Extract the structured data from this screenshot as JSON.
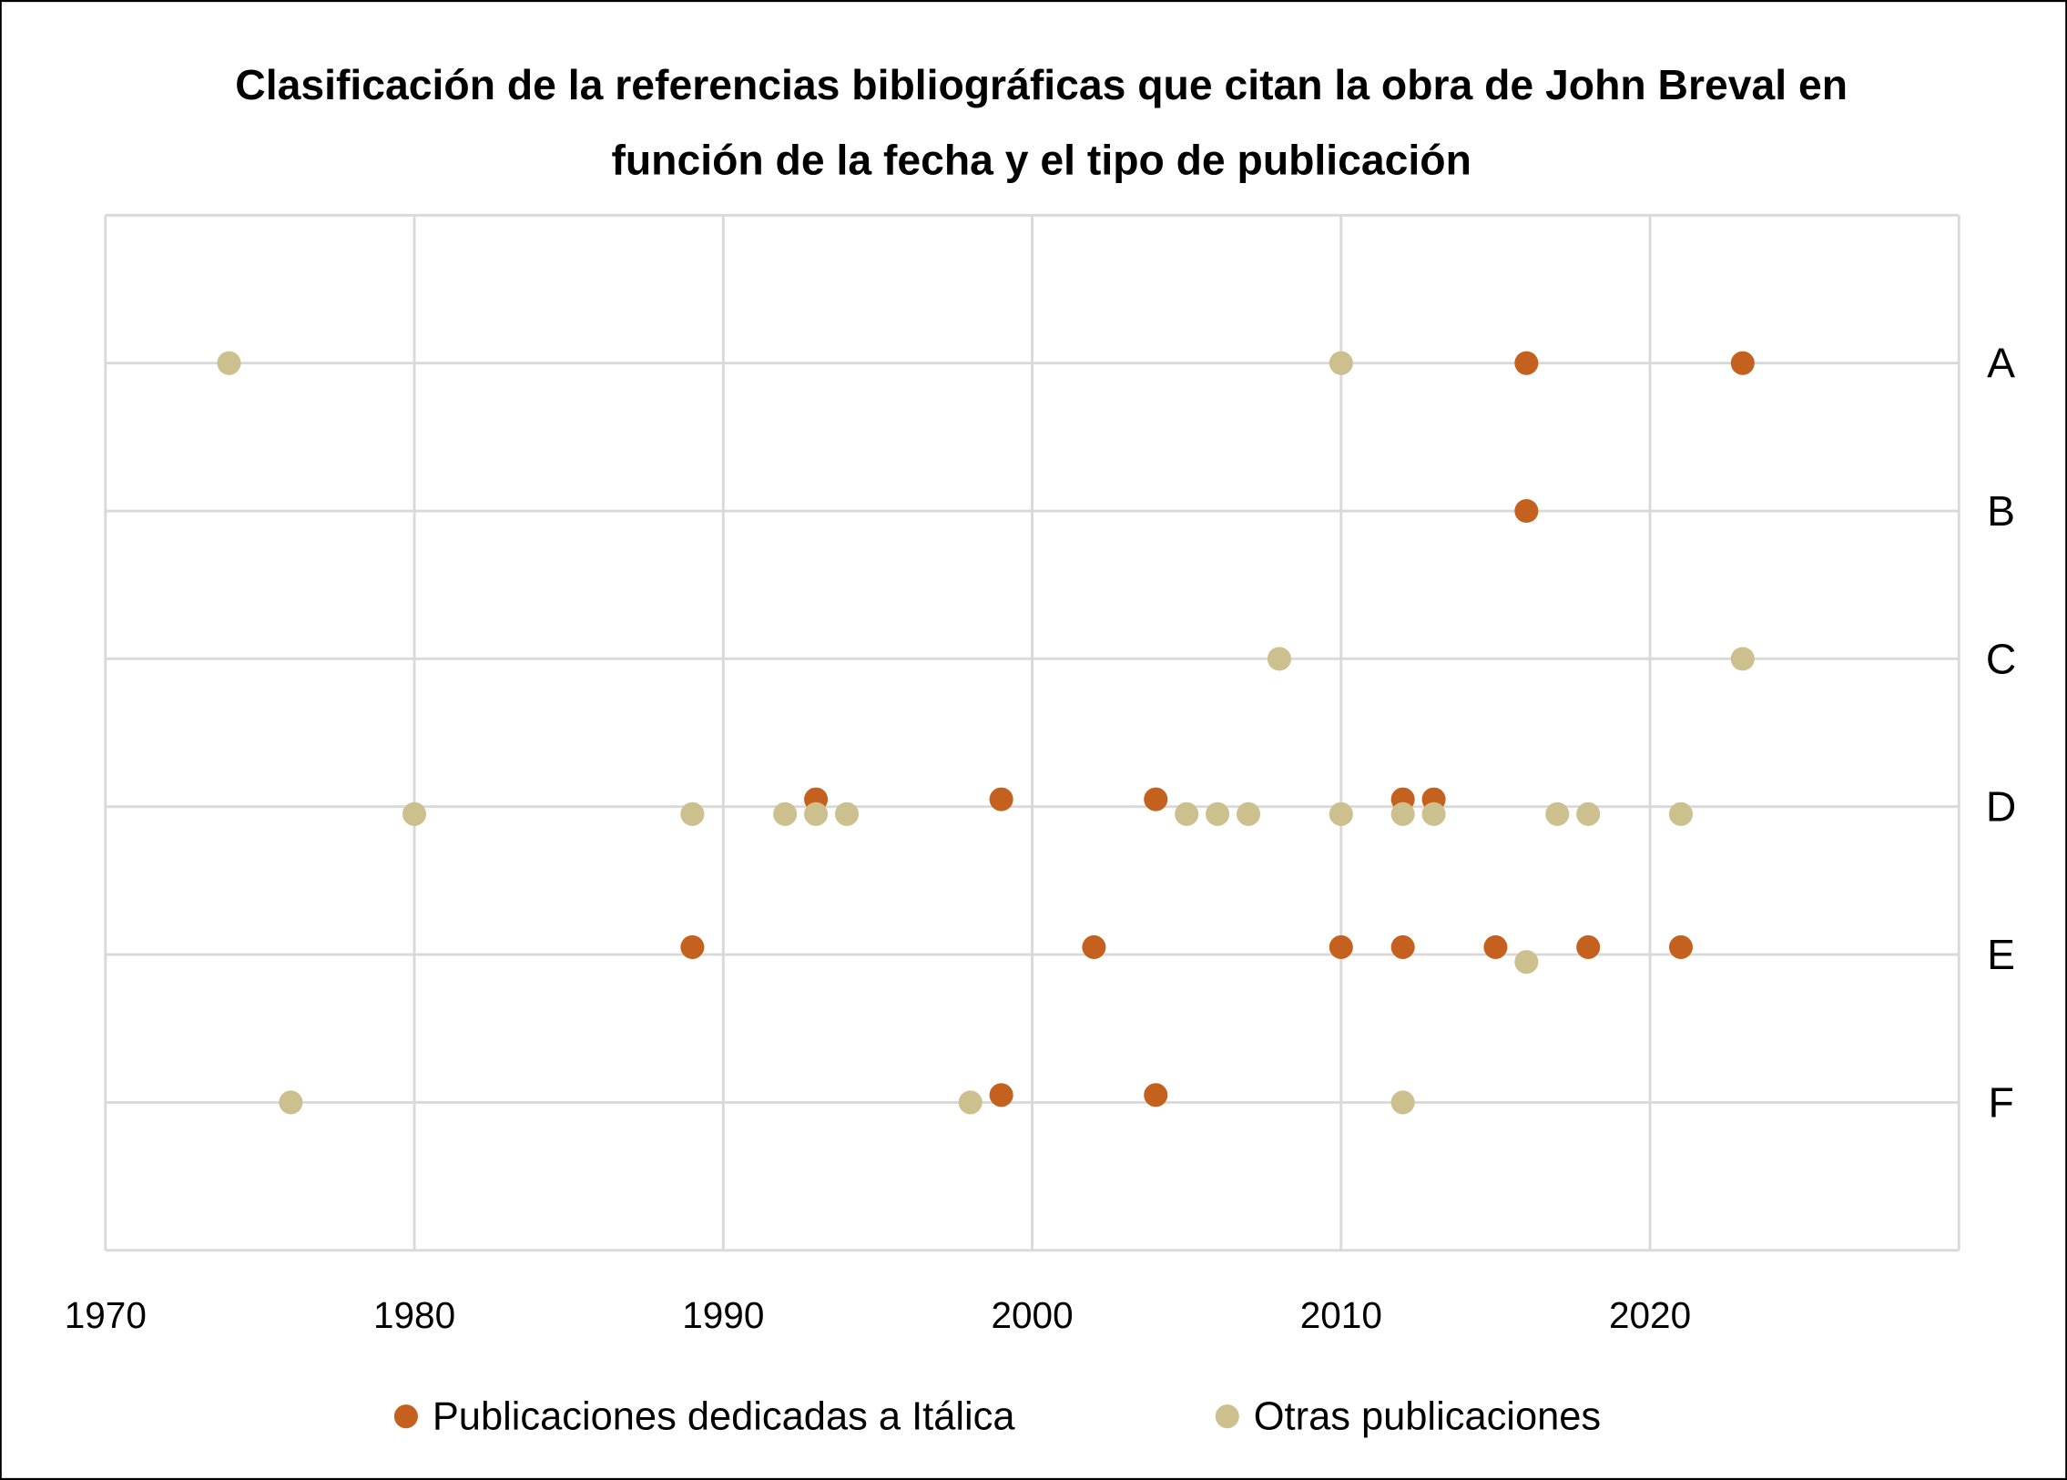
{
  "chart_data": {
    "type": "scatter",
    "title": [
      "Clasificación de la referencias bibliográficas que citan la obra de John Breval en",
      "función de la fecha y el tipo de publicación"
    ],
    "xlabel": "",
    "ylabel": "",
    "xlim": [
      1970,
      2030
    ],
    "x_ticks": [
      "1970",
      "1980",
      "1990",
      "2000",
      "2010",
      "2020"
    ],
    "ylim": [
      0,
      7
    ],
    "y_categories": [
      {
        "label": "A",
        "value": 6
      },
      {
        "label": "B",
        "value": 5
      },
      {
        "label": "C",
        "value": 4
      },
      {
        "label": "D",
        "value": 3
      },
      {
        "label": "E",
        "value": 2
      },
      {
        "label": "F",
        "value": 1
      }
    ],
    "grid": true,
    "legend_position": "bottom",
    "series": [
      {
        "name": "Publicaciones dedicadas a Itálica",
        "color": "#C4611F",
        "points": [
          [
            2016,
            6
          ],
          [
            2023,
            6
          ],
          [
            2016,
            5
          ],
          [
            1993,
            3.05
          ],
          [
            1999,
            3.05
          ],
          [
            2004,
            3.05
          ],
          [
            2012,
            3.05
          ],
          [
            2013,
            3.05
          ],
          [
            1989,
            2.05
          ],
          [
            2002,
            2.05
          ],
          [
            2010,
            2.05
          ],
          [
            2012,
            2.05
          ],
          [
            2015,
            2.05
          ],
          [
            2018,
            2.05
          ],
          [
            2021,
            2.05
          ],
          [
            1999,
            1.05
          ],
          [
            2004,
            1.05
          ]
        ]
      },
      {
        "name": "Otras publicaciones",
        "color": "#CCC08E",
        "points": [
          [
            1974,
            6
          ],
          [
            2010,
            6
          ],
          [
            2008,
            4
          ],
          [
            2023,
            4
          ],
          [
            1980,
            2.95
          ],
          [
            1989,
            2.95
          ],
          [
            1992,
            2.95
          ],
          [
            1993,
            2.95
          ],
          [
            1994,
            2.95
          ],
          [
            2005,
            2.95
          ],
          [
            2006,
            2.95
          ],
          [
            2007,
            2.95
          ],
          [
            2010,
            2.95
          ],
          [
            2012,
            2.95
          ],
          [
            2013,
            2.95
          ],
          [
            2017,
            2.95
          ],
          [
            2018,
            2.95
          ],
          [
            2021,
            2.95
          ],
          [
            2016,
            1.95
          ],
          [
            1976,
            1
          ],
          [
            1998,
            1
          ],
          [
            2012,
            1
          ]
        ]
      }
    ]
  }
}
